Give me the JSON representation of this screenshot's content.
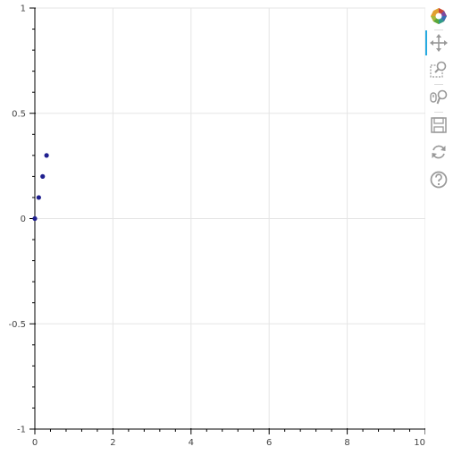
{
  "chart_data": {
    "type": "scatter",
    "title": "",
    "xlabel": "",
    "ylabel": "",
    "xlim": [
      0,
      10
    ],
    "ylim": [
      -1,
      1
    ],
    "x_ticks": [
      0,
      2,
      4,
      6,
      8,
      10
    ],
    "y_ticks": [
      -1,
      -0.5,
      0,
      0.5,
      1
    ],
    "x_tick_labels": [
      "0",
      "2",
      "4",
      "6",
      "8",
      "10"
    ],
    "y_tick_labels": [
      "-1",
      "-0.5",
      "0",
      "0.5",
      "1"
    ],
    "grid": true,
    "series": [
      {
        "color": "#1f1f8f",
        "x": [
          0,
          0.1,
          0.2,
          0.3
        ],
        "y": [
          0,
          0.1,
          0.2,
          0.3
        ]
      }
    ]
  },
  "toolbar": {
    "tools": [
      {
        "name": "bokeh-logo",
        "icon": "bokeh-logo-icon",
        "interactable": false
      },
      {
        "name": "pan-tool",
        "icon": "pan-icon",
        "active": true,
        "interactable": true
      },
      {
        "name": "box-zoom-tool",
        "icon": "box-zoom-icon",
        "interactable": true
      },
      {
        "name": "wheel-zoom-tool",
        "icon": "wheel-zoom-icon",
        "interactable": true
      },
      {
        "name": "save-tool",
        "icon": "save-icon",
        "interactable": true
      },
      {
        "name": "reset-tool",
        "icon": "reset-icon",
        "interactable": true
      },
      {
        "name": "help-tool",
        "icon": "help-icon",
        "interactable": true
      }
    ]
  }
}
